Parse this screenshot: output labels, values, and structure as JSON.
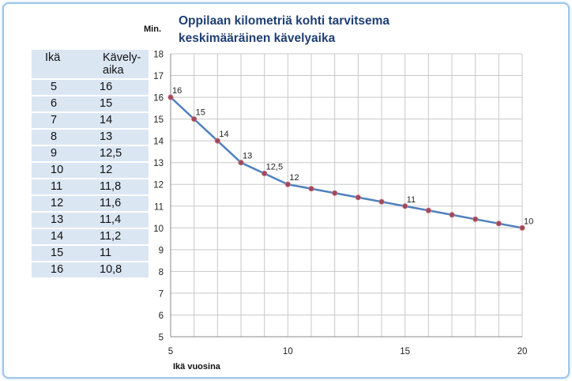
{
  "title_line1": "Oppilaan kilometriä kohti tarvitsema",
  "title_line2": "keskimääräinen kävelyaika",
  "table": {
    "header_age": "Ikä",
    "header_time_line1": "Kävely-",
    "header_time_line2": "aika",
    "rows": [
      {
        "age": "5",
        "time": "16"
      },
      {
        "age": "6",
        "time": "15"
      },
      {
        "age": "7",
        "time": "14"
      },
      {
        "age": "8",
        "time": "13"
      },
      {
        "age": "9",
        "time": "12,5"
      },
      {
        "age": "10",
        "time": "12"
      },
      {
        "age": "11",
        "time": "11,8"
      },
      {
        "age": "12",
        "time": "11,6"
      },
      {
        "age": "13",
        "time": "11,4"
      },
      {
        "age": "14",
        "time": "11,2"
      },
      {
        "age": "15",
        "time": "11"
      },
      {
        "age": "16",
        "time": "10,8"
      }
    ]
  },
  "chart_data": {
    "type": "line",
    "ylabel": "Min.",
    "xlabel": "Ikä vuosina",
    "xlim": [
      5,
      20
    ],
    "ylim": [
      5,
      18
    ],
    "x_ticks": [
      "5",
      "10",
      "15",
      "20"
    ],
    "y_ticks": [
      "5",
      "6",
      "7",
      "8",
      "9",
      "10",
      "11",
      "12",
      "13",
      "14",
      "15",
      "16",
      "17",
      "18"
    ],
    "grid": true,
    "series": [
      {
        "x": [
          5,
          6,
          7,
          8,
          9,
          10,
          11,
          12,
          13,
          14,
          15,
          16,
          17,
          18,
          19,
          20
        ],
        "values": [
          16,
          15,
          14,
          13,
          12.5,
          12,
          11.8,
          11.6,
          11.4,
          11.2,
          11,
          10.8,
          10.6,
          10.4,
          10.2,
          10
        ]
      }
    ],
    "data_labels": [
      {
        "x": 5,
        "y": 16,
        "text": "16"
      },
      {
        "x": 6,
        "y": 15,
        "text": "15"
      },
      {
        "x": 7,
        "y": 14,
        "text": "14"
      },
      {
        "x": 8,
        "y": 13,
        "text": "13"
      },
      {
        "x": 9,
        "y": 12.5,
        "text": "12,5"
      },
      {
        "x": 10,
        "y": 12,
        "text": "12"
      },
      {
        "x": 15,
        "y": 11,
        "text": "11"
      },
      {
        "x": 20,
        "y": 10,
        "text": "10"
      }
    ],
    "line_color": "#4f81bd",
    "marker_color": "#a0485a"
  }
}
